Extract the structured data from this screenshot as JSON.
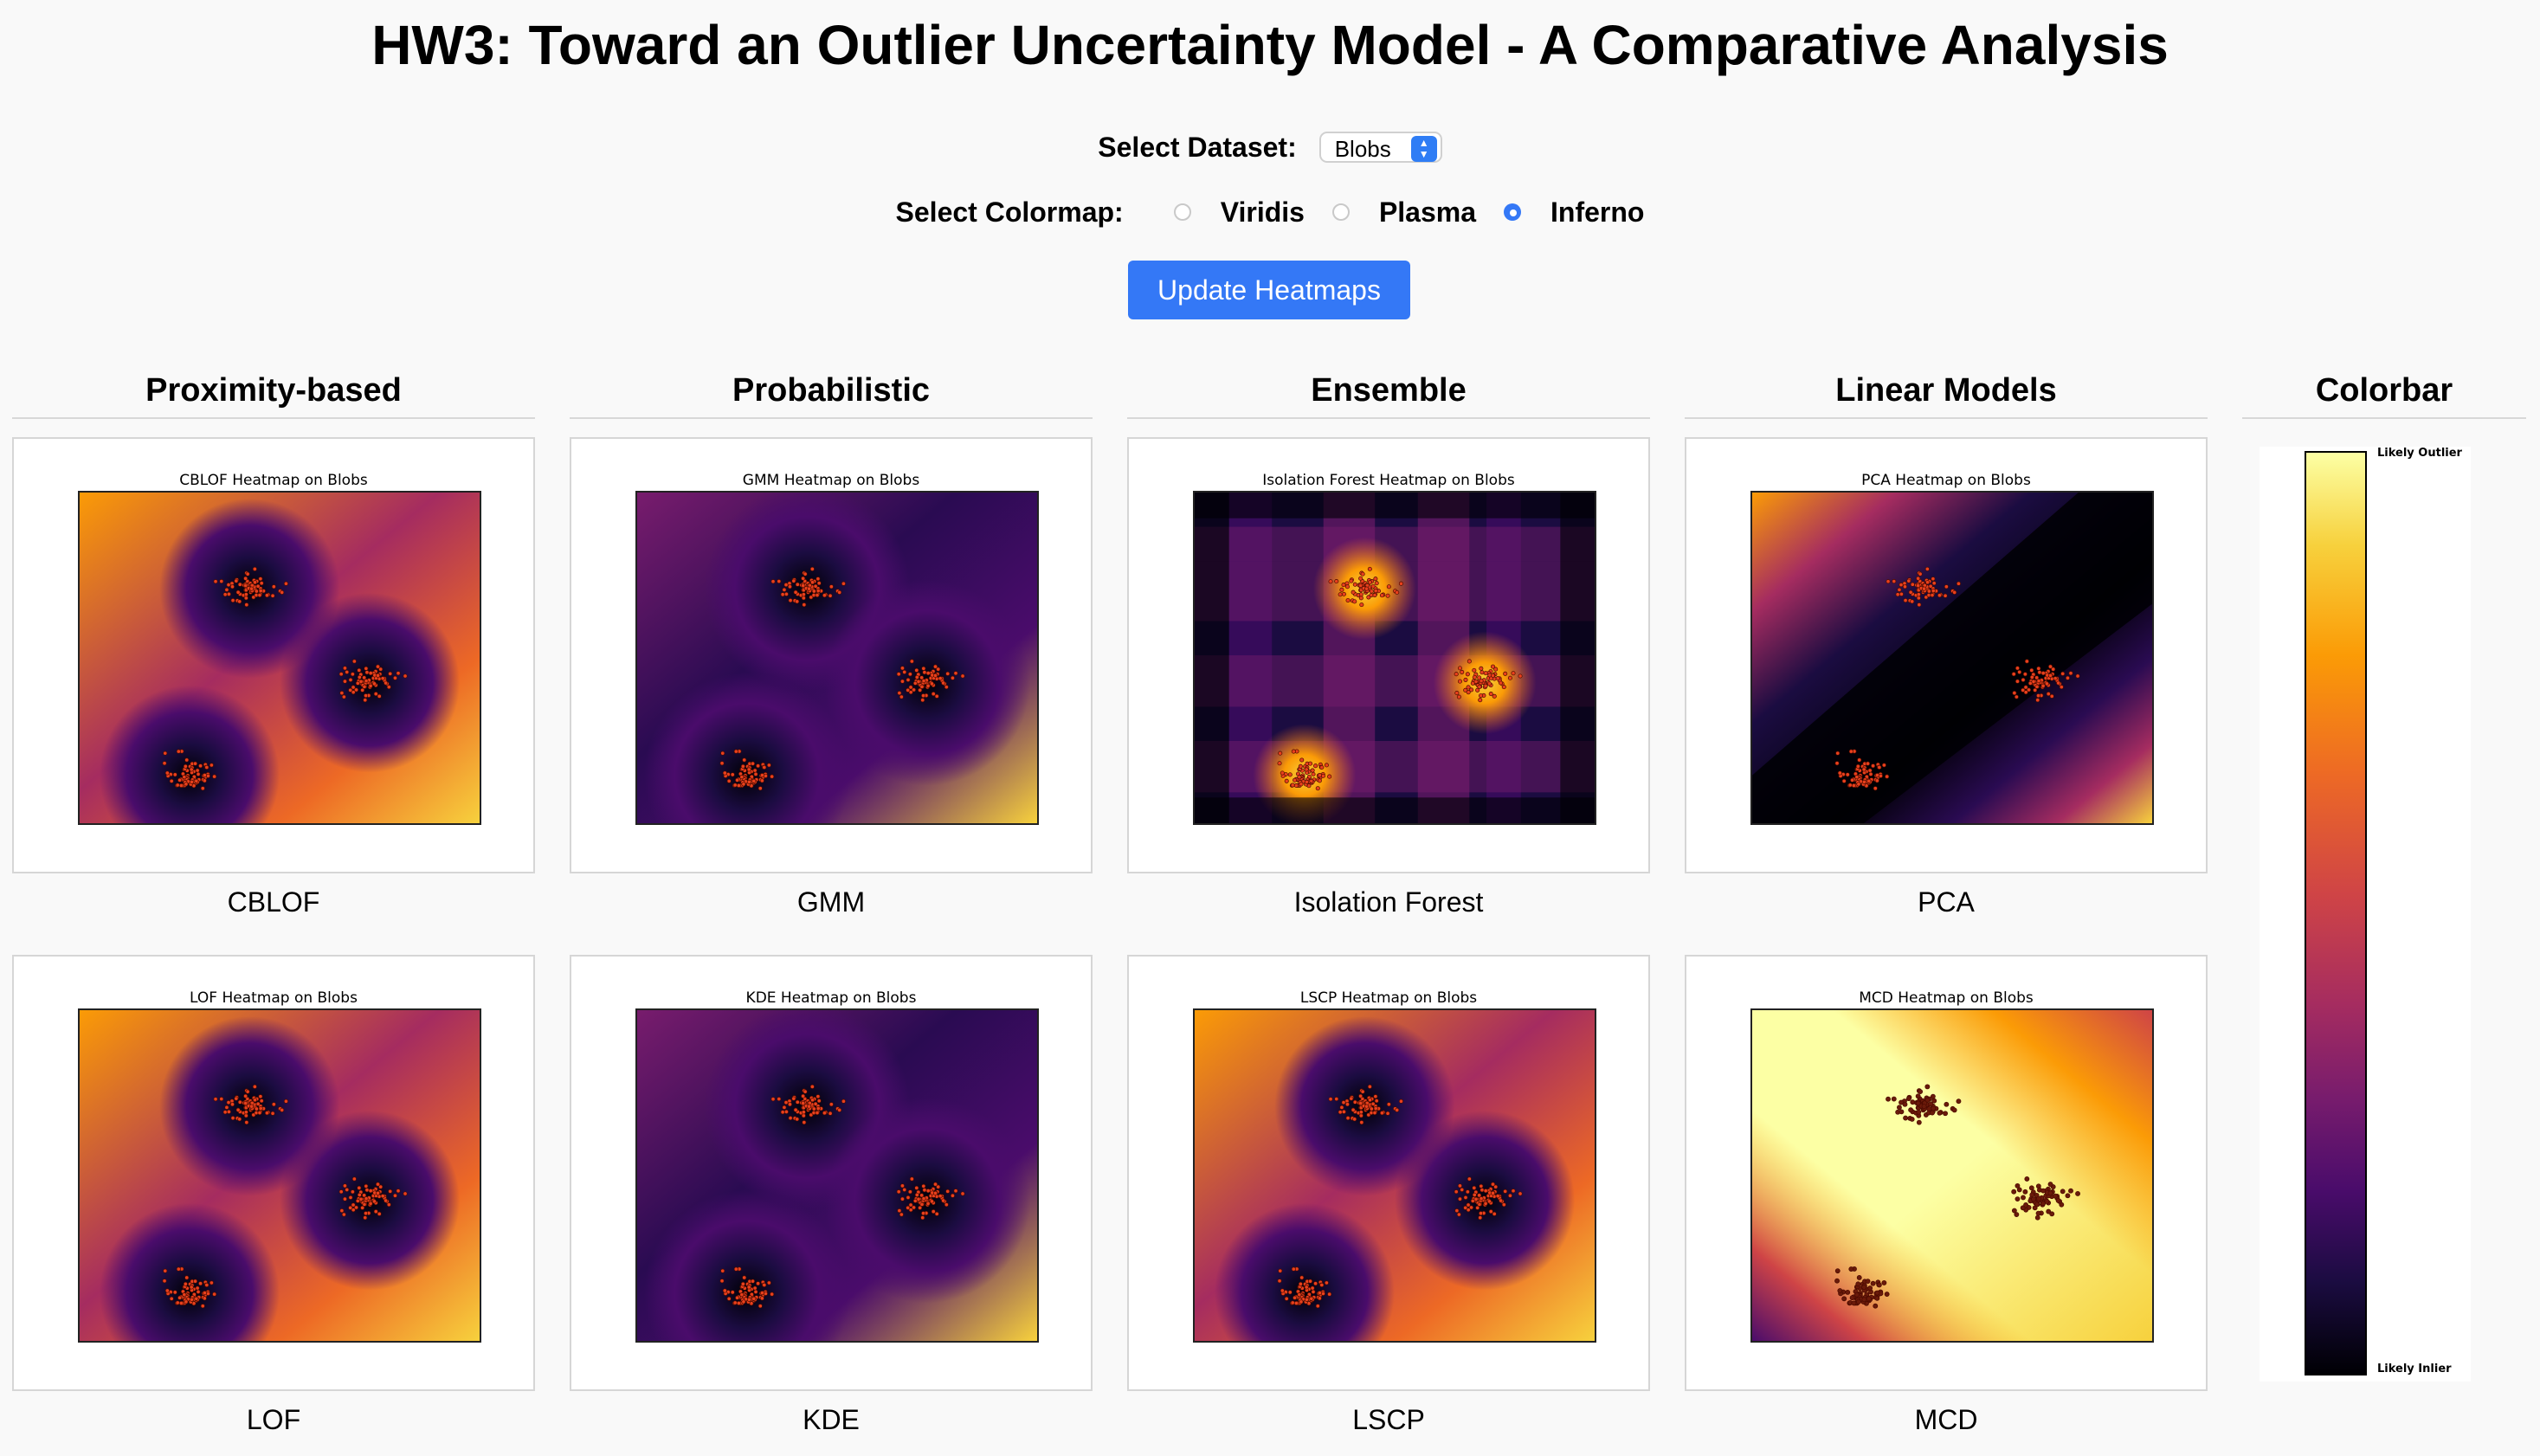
{
  "page": {
    "title": "HW3: Toward an Outlier Uncertainty Model - A Comparative Analysis"
  },
  "controls": {
    "dataset_label": "Select Dataset:",
    "dataset_value": "Blobs",
    "colormap_label": "Select Colormap:",
    "colormap_options": [
      {
        "label": "Viridis",
        "checked": false
      },
      {
        "label": "Plasma",
        "checked": false
      },
      {
        "label": "Inferno",
        "checked": true
      }
    ],
    "update_button": "Update Heatmaps"
  },
  "columns": [
    {
      "header": "Proximity-based",
      "models": [
        {
          "label": "CBLOF",
          "plot_title": "CBLOF Heatmap on Blobs",
          "style": "radial-bright"
        },
        {
          "label": "LOF",
          "plot_title": "LOF Heatmap on Blobs",
          "style": "radial-bright"
        }
      ]
    },
    {
      "header": "Probabilistic",
      "models": [
        {
          "label": "GMM",
          "plot_title": "GMM Heatmap on Blobs",
          "style": "radial-dark"
        },
        {
          "label": "KDE",
          "plot_title": "KDE Heatmap on Blobs",
          "style": "radial-dark"
        }
      ]
    },
    {
      "header": "Ensemble",
      "models": [
        {
          "label": "Isolation Forest",
          "plot_title": "Isolation Forest Heatmap on Blobs",
          "style": "iforest"
        },
        {
          "label": "LSCP",
          "plot_title": "LSCP Heatmap on Blobs",
          "style": "radial-bright"
        }
      ]
    },
    {
      "header": "Linear Models",
      "models": [
        {
          "label": "PCA",
          "plot_title": "PCA Heatmap on Blobs",
          "style": "pca"
        },
        {
          "label": "MCD",
          "plot_title": "MCD Heatmap on Blobs",
          "style": "mcd"
        }
      ]
    }
  ],
  "colorbar": {
    "header": "Colorbar",
    "top_label": "Likely Outlier",
    "bottom_label": "Likely Inlier",
    "colormap": "inferno",
    "colors": [
      "#000004",
      "#1b0c41",
      "#4a0c6b",
      "#781c6d",
      "#a52c60",
      "#cf4446",
      "#ed6925",
      "#fb9b06",
      "#f7d13d",
      "#fcffa4"
    ]
  },
  "point_color": "#e8401c",
  "point_edge_color": "#4a0a00"
}
